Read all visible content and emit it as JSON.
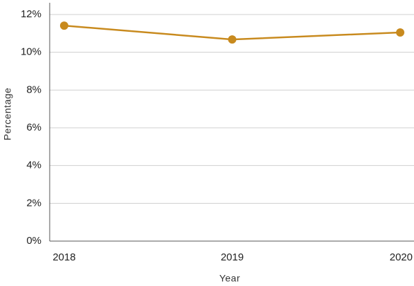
{
  "chart_data": {
    "type": "line",
    "x_label": "Year",
    "y_label": "Percentage",
    "categories": [
      "2018",
      "2019",
      "2020"
    ],
    "series": [
      {
        "name": "Percentage",
        "color": "#c88a1e",
        "values": [
          11.41,
          10.68,
          11.05
        ]
      }
    ],
    "ylim": [
      0,
      12
    ],
    "yticks": [
      {
        "value": 0,
        "label": "0%"
      },
      {
        "value": 2,
        "label": "2%"
      },
      {
        "value": 4,
        "label": "4%"
      },
      {
        "value": 6,
        "label": "6%"
      },
      {
        "value": 8,
        "label": "8%"
      },
      {
        "value": 10,
        "label": "10%"
      },
      {
        "value": 12,
        "label": "12%"
      }
    ],
    "grid": true
  }
}
